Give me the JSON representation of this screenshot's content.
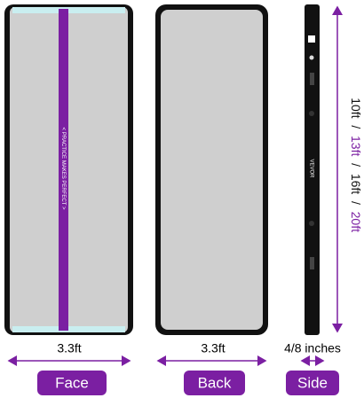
{
  "views": [
    {
      "label": "Face",
      "width": "3.3ft"
    },
    {
      "label": "Back",
      "width": "3.3ft"
    },
    {
      "label": "Side",
      "width": "4/8 inches"
    }
  ],
  "slogan": "< PRACTICE MAKES PERFECT >",
  "brand": "VEVOR",
  "lengths": [
    "10ft",
    "13ft",
    "16ft",
    "20ft"
  ],
  "separator": "/"
}
